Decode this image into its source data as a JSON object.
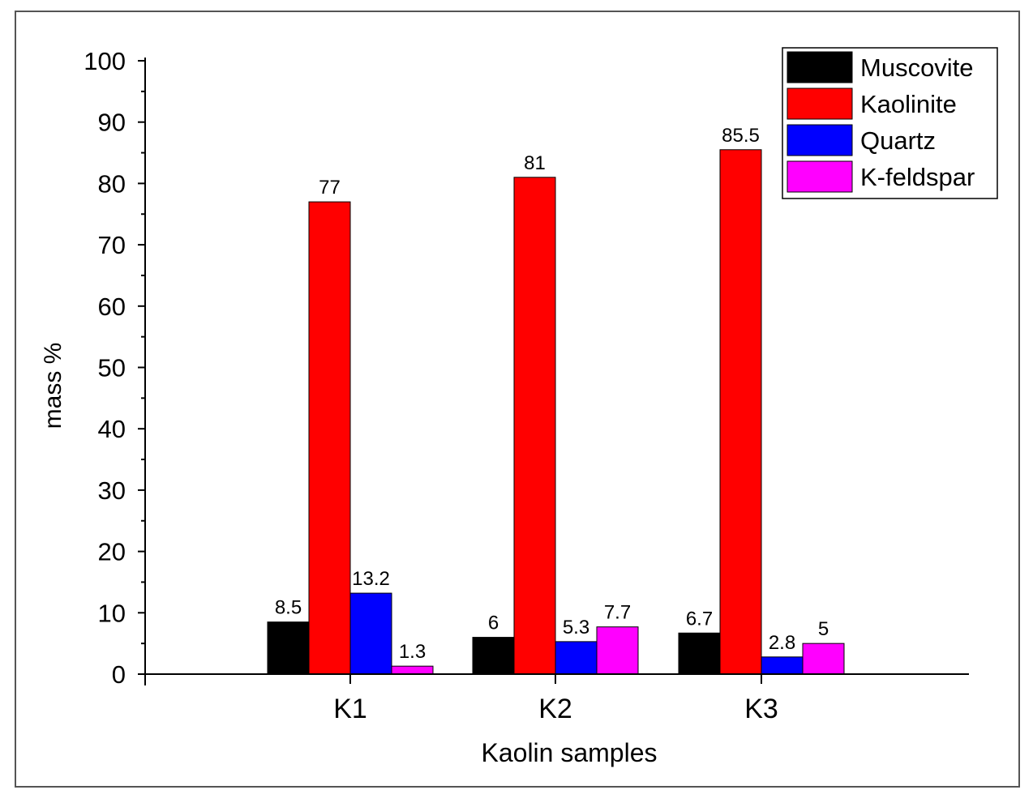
{
  "chart_data": {
    "type": "bar",
    "title": "",
    "xlabel": "Kaolin samples",
    "ylabel": "mass %",
    "categories": [
      "K1",
      "K2",
      "K3"
    ],
    "ylim": [
      0,
      100
    ],
    "yticks": [
      "0",
      "10",
      "20",
      "30",
      "40",
      "50",
      "60",
      "70",
      "80",
      "90",
      "100"
    ],
    "grid": false,
    "legend_position": "top-right",
    "series": [
      {
        "name": "Muscovite",
        "color": "#000000",
        "values": [
          8.5,
          6,
          6.7
        ],
        "labels": [
          "8.5",
          "6",
          "6.7"
        ]
      },
      {
        "name": "Kaolinite",
        "color": "#ff0000",
        "values": [
          77,
          81,
          85.5
        ],
        "labels": [
          "77",
          "81",
          "85.5"
        ]
      },
      {
        "name": "Quartz",
        "color": "#0000ff",
        "values": [
          13.2,
          5.3,
          2.8
        ],
        "labels": [
          "13.2",
          "5.3",
          "2.8"
        ]
      },
      {
        "name": "K-feldspar",
        "color": "#ff00ff",
        "values": [
          1.3,
          7.7,
          5
        ],
        "labels": [
          "1.3",
          "7.7",
          "5"
        ]
      }
    ]
  }
}
